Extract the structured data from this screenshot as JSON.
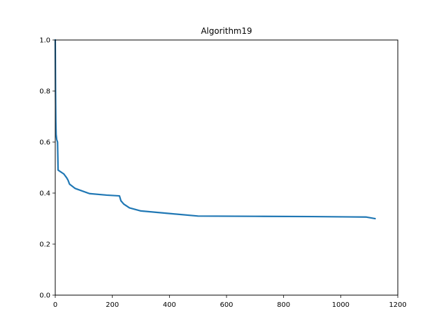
{
  "chart_data": {
    "type": "line",
    "title": "Algorithm19",
    "xlabel": "",
    "ylabel": "",
    "xlim": [
      0,
      1200
    ],
    "ylim": [
      0.0,
      1.0
    ],
    "xticks": [
      0,
      200,
      400,
      600,
      800,
      1000,
      1200
    ],
    "xtick_labels": [
      "0",
      "200",
      "400",
      "600",
      "800",
      "1000",
      "1200"
    ],
    "yticks": [
      0.0,
      0.2,
      0.4,
      0.6,
      0.8,
      1.0
    ],
    "ytick_labels": [
      "0.0",
      "0.2",
      "0.4",
      "0.6",
      "0.8",
      "1.0"
    ],
    "grid": false,
    "series": [
      {
        "color": "#1f77b4",
        "x": [
          0,
          1,
          2,
          3,
          5,
          8,
          10,
          30,
          40,
          45,
          50,
          70,
          120,
          180,
          225,
          230,
          240,
          260,
          300,
          400,
          500,
          700,
          900,
          1090,
          1120
        ],
        "y": [
          1.0,
          0.8,
          0.68,
          0.63,
          0.61,
          0.6,
          0.49,
          0.475,
          0.46,
          0.45,
          0.435,
          0.418,
          0.398,
          0.392,
          0.389,
          0.37,
          0.357,
          0.342,
          0.33,
          0.32,
          0.31,
          0.309,
          0.308,
          0.306,
          0.3
        ]
      }
    ]
  }
}
